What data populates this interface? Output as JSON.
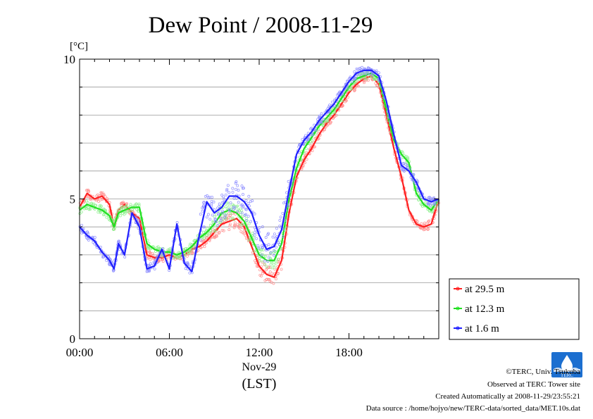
{
  "chart_data": {
    "type": "line",
    "title": "Dew Point / 2008-11-29",
    "yunit": "[°C]",
    "ylim": [
      0,
      10
    ],
    "xlim": [
      0,
      24
    ],
    "y_major_ticks": [
      0,
      5,
      10
    ],
    "y_major_labels": [
      "0",
      "5",
      "10"
    ],
    "x_ticks": [
      0,
      6,
      12,
      18
    ],
    "x_tick_labels": [
      "00:00",
      "06:00",
      "12:00",
      "18:00"
    ],
    "x_date_label": "Nov-29",
    "xlabel": "(LST)",
    "grid": true,
    "legend_position": "right",
    "series": [
      {
        "name": "at 29.5 m",
        "color": "#ff2020",
        "x": [
          0.0,
          0.5,
          1.0,
          1.5,
          2.0,
          2.3,
          2.6,
          3.0,
          3.5,
          4.0,
          4.5,
          5.0,
          5.5,
          6.0,
          6.5,
          7.0,
          7.5,
          8.0,
          8.5,
          9.0,
          9.5,
          10.0,
          10.5,
          11.0,
          11.5,
          12.0,
          12.5,
          13.0,
          13.5,
          14.0,
          14.5,
          15.0,
          15.5,
          16.0,
          16.5,
          17.0,
          17.5,
          18.0,
          18.5,
          19.0,
          19.5,
          20.0,
          20.5,
          21.0,
          21.5,
          22.0,
          22.5,
          23.0,
          23.5,
          24.0
        ],
        "y": [
          4.7,
          5.2,
          5.0,
          5.1,
          4.8,
          4.0,
          4.6,
          4.8,
          4.5,
          4.3,
          3.0,
          2.9,
          2.9,
          3.0,
          2.9,
          3.0,
          3.2,
          3.3,
          3.5,
          3.8,
          4.1,
          4.2,
          4.3,
          4.0,
          3.3,
          2.6,
          2.3,
          2.2,
          2.8,
          4.5,
          5.8,
          6.4,
          6.8,
          7.3,
          7.7,
          8.0,
          8.4,
          8.8,
          9.1,
          9.3,
          9.4,
          9.1,
          8.0,
          6.8,
          5.8,
          4.6,
          4.1,
          4.0,
          4.1,
          5.0
        ]
      },
      {
        "name": "at 12.3 m",
        "color": "#20e020",
        "x": [
          0.0,
          0.5,
          1.0,
          1.5,
          2.0,
          2.3,
          2.6,
          3.0,
          3.5,
          4.0,
          4.5,
          5.0,
          5.5,
          6.0,
          6.5,
          7.0,
          7.5,
          8.0,
          8.5,
          9.0,
          9.5,
          10.0,
          10.5,
          11.0,
          11.5,
          12.0,
          12.5,
          13.0,
          13.5,
          14.0,
          14.5,
          15.0,
          15.5,
          16.0,
          16.5,
          17.0,
          17.5,
          18.0,
          18.5,
          19.0,
          19.5,
          20.0,
          20.5,
          21.0,
          21.5,
          22.0,
          22.5,
          23.0,
          23.5,
          24.0
        ],
        "y": [
          4.6,
          4.8,
          4.7,
          4.6,
          4.4,
          4.0,
          4.5,
          4.6,
          4.7,
          4.7,
          3.4,
          3.2,
          3.1,
          3.1,
          3.0,
          3.1,
          3.3,
          3.6,
          3.8,
          4.1,
          4.5,
          4.6,
          4.5,
          4.2,
          3.6,
          3.0,
          2.8,
          2.8,
          3.4,
          5.0,
          6.1,
          6.8,
          7.2,
          7.6,
          7.9,
          8.2,
          8.6,
          9.0,
          9.3,
          9.4,
          9.5,
          9.3,
          8.2,
          7.1,
          6.6,
          6.3,
          5.2,
          4.8,
          4.6,
          5.0
        ]
      },
      {
        "name": "at 1.6 m",
        "color": "#2020ff",
        "x": [
          0.0,
          0.5,
          1.0,
          1.5,
          2.0,
          2.3,
          2.6,
          3.0,
          3.5,
          4.0,
          4.5,
          5.0,
          5.5,
          6.0,
          6.5,
          7.0,
          7.5,
          8.0,
          8.5,
          9.0,
          9.5,
          10.0,
          10.5,
          11.0,
          11.5,
          12.0,
          12.5,
          13.0,
          13.5,
          14.0,
          14.5,
          15.0,
          15.5,
          16.0,
          16.5,
          17.0,
          17.5,
          18.0,
          18.5,
          19.0,
          19.5,
          20.0,
          20.5,
          21.0,
          21.5,
          22.0,
          22.5,
          23.0,
          23.5,
          24.0
        ],
        "y": [
          4.0,
          3.7,
          3.5,
          3.1,
          2.8,
          2.5,
          3.4,
          3.0,
          4.5,
          4.0,
          2.5,
          2.6,
          3.2,
          2.5,
          4.1,
          2.7,
          2.4,
          3.7,
          4.9,
          4.5,
          4.7,
          5.1,
          5.1,
          4.9,
          4.5,
          3.7,
          3.2,
          3.3,
          3.9,
          5.3,
          6.6,
          7.1,
          7.4,
          7.8,
          8.1,
          8.4,
          8.8,
          9.2,
          9.5,
          9.6,
          9.6,
          9.4,
          8.5,
          7.3,
          6.2,
          6.0,
          5.6,
          5.0,
          4.9,
          5.0
        ]
      }
    ]
  },
  "footer": {
    "credit": "©TERC, Univ. Tsukuba",
    "observed": "Observed at TERC Tower site",
    "created": "Created Automatically at 2008-11-29/23:55:21",
    "source": "Data source : /home/hojyo/new/TERC-data/sorted_data/MET.10s.dat",
    "logo_text": "TERC"
  }
}
